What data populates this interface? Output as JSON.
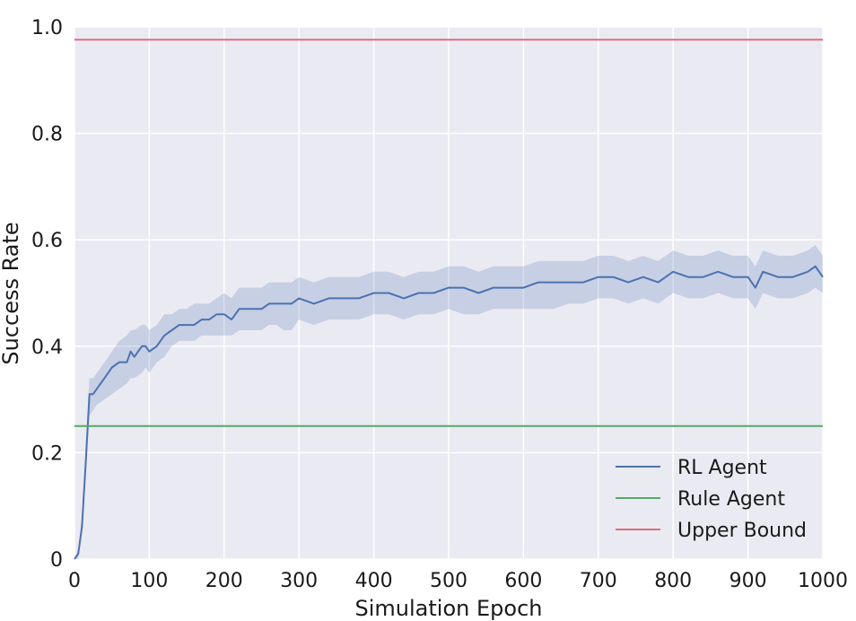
{
  "chart_data": {
    "type": "line",
    "xlabel": "Simulation Epoch",
    "ylabel": "Success Rate",
    "xlim": [
      0,
      1000
    ],
    "ylim": [
      0,
      1.0
    ],
    "x_ticks": [
      0,
      100,
      200,
      300,
      400,
      500,
      600,
      700,
      800,
      900,
      1000
    ],
    "x_tick_labels": [
      "0",
      "100",
      "200",
      "300",
      "400",
      "500",
      "600",
      "700",
      "800",
      "900",
      "1000"
    ],
    "y_ticks": [
      0,
      0.2,
      0.4,
      0.6,
      0.8,
      1.0
    ],
    "y_tick_labels": [
      "0",
      "0.2",
      "0.4",
      "0.6",
      "0.8",
      "1.0"
    ],
    "grid": true,
    "legend_position": "bottom-right",
    "colors": {
      "background": "#eaeaf2",
      "grid": "#ffffff",
      "rl": "#4c72b0",
      "rule": "#55a868",
      "upper": "#e06c84"
    },
    "series": [
      {
        "name": "RL Agent",
        "color": "#4c72b0",
        "style": "line_with_band",
        "x": [
          0,
          5,
          10,
          15,
          20,
          25,
          30,
          40,
          50,
          60,
          70,
          75,
          80,
          90,
          95,
          100,
          110,
          120,
          130,
          140,
          150,
          160,
          170,
          180,
          190,
          200,
          210,
          220,
          230,
          240,
          250,
          260,
          270,
          280,
          290,
          300,
          320,
          340,
          360,
          380,
          400,
          420,
          440,
          460,
          480,
          500,
          520,
          540,
          560,
          580,
          600,
          620,
          640,
          660,
          680,
          700,
          720,
          740,
          760,
          780,
          800,
          820,
          840,
          860,
          880,
          900,
          910,
          920,
          940,
          960,
          980,
          990,
          1000
        ],
        "y": [
          0.0,
          0.01,
          0.06,
          0.18,
          0.31,
          0.31,
          0.32,
          0.34,
          0.36,
          0.37,
          0.37,
          0.39,
          0.38,
          0.4,
          0.4,
          0.39,
          0.4,
          0.42,
          0.43,
          0.44,
          0.44,
          0.44,
          0.45,
          0.45,
          0.46,
          0.46,
          0.45,
          0.47,
          0.47,
          0.47,
          0.47,
          0.48,
          0.48,
          0.48,
          0.48,
          0.49,
          0.48,
          0.49,
          0.49,
          0.49,
          0.5,
          0.5,
          0.49,
          0.5,
          0.5,
          0.51,
          0.51,
          0.5,
          0.51,
          0.51,
          0.51,
          0.52,
          0.52,
          0.52,
          0.52,
          0.53,
          0.53,
          0.52,
          0.53,
          0.52,
          0.54,
          0.53,
          0.53,
          0.54,
          0.53,
          0.53,
          0.51,
          0.54,
          0.53,
          0.53,
          0.54,
          0.55,
          0.53
        ],
        "lower": [
          0.0,
          0.0,
          0.05,
          0.15,
          0.27,
          0.28,
          0.29,
          0.3,
          0.31,
          0.32,
          0.33,
          0.34,
          0.34,
          0.35,
          0.36,
          0.35,
          0.37,
          0.38,
          0.4,
          0.41,
          0.41,
          0.41,
          0.42,
          0.42,
          0.42,
          0.42,
          0.42,
          0.43,
          0.43,
          0.43,
          0.43,
          0.44,
          0.44,
          0.43,
          0.43,
          0.45,
          0.44,
          0.45,
          0.45,
          0.45,
          0.46,
          0.46,
          0.45,
          0.46,
          0.46,
          0.47,
          0.46,
          0.46,
          0.47,
          0.47,
          0.47,
          0.47,
          0.47,
          0.48,
          0.48,
          0.49,
          0.49,
          0.48,
          0.49,
          0.48,
          0.5,
          0.49,
          0.49,
          0.5,
          0.49,
          0.49,
          0.47,
          0.5,
          0.49,
          0.49,
          0.5,
          0.51,
          0.5
        ],
        "upper": [
          0.0,
          0.02,
          0.08,
          0.21,
          0.34,
          0.34,
          0.35,
          0.37,
          0.39,
          0.41,
          0.42,
          0.43,
          0.43,
          0.44,
          0.44,
          0.43,
          0.44,
          0.46,
          0.46,
          0.47,
          0.47,
          0.48,
          0.48,
          0.48,
          0.49,
          0.5,
          0.49,
          0.51,
          0.51,
          0.51,
          0.51,
          0.52,
          0.52,
          0.52,
          0.52,
          0.53,
          0.52,
          0.53,
          0.53,
          0.53,
          0.54,
          0.54,
          0.53,
          0.54,
          0.54,
          0.55,
          0.55,
          0.54,
          0.55,
          0.55,
          0.55,
          0.56,
          0.56,
          0.56,
          0.56,
          0.57,
          0.57,
          0.56,
          0.57,
          0.56,
          0.58,
          0.57,
          0.57,
          0.58,
          0.57,
          0.57,
          0.55,
          0.58,
          0.57,
          0.57,
          0.58,
          0.59,
          0.57
        ]
      },
      {
        "name": "Rule Agent",
        "color": "#55a868",
        "style": "hline",
        "value": 0.25
      },
      {
        "name": "Upper Bound",
        "color": "#e06c84",
        "style": "hline",
        "value": 0.976
      }
    ]
  }
}
